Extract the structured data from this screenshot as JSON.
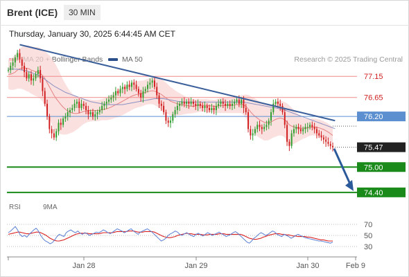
{
  "header": {
    "title": "Brent (ICE)",
    "timeframe": "30 MIN"
  },
  "datetime": "Thursday, January 30, 2025 6:44:45 AM CET",
  "legend": {
    "ma20_label": "MA 20 + Bollinger Bands",
    "ma50_label": "MA 50",
    "credit": "Research © 2025 Trading Central"
  },
  "rsi_legend": {
    "rsi_label": "RSI",
    "ma9_label": "9MA"
  },
  "colors": {
    "bull": "#2f9e2f",
    "bear": "#d11f1f",
    "band": "#f9d6d6",
    "ma20": "#e58080",
    "ma50": "#8b91c2",
    "trendline": "#3a5f9a",
    "level_red": "#f08a8a",
    "level_blue": "#5b8fd0",
    "level_green": "#1a8a1a",
    "arrow": "#2b5a9a",
    "rsi": "#5b7fd4",
    "rsi_ma": "#d92020"
  },
  "chart_data": {
    "type": "candlestick",
    "x_tick_labels": [
      "Jan 28",
      "Jan 29",
      "Jan 30",
      "Feb 9"
    ],
    "ylim": [
      74.2,
      77.4
    ],
    "levels": [
      {
        "value": 77.15,
        "label": "77.15",
        "style": "resistance"
      },
      {
        "value": 76.65,
        "label": "76.65",
        "style": "resistance"
      },
      {
        "value": 76.2,
        "label": "76.20",
        "style": "pivot"
      },
      {
        "value": 75.47,
        "label": "75.47",
        "style": "last"
      },
      {
        "value": 75.0,
        "label": "75.00",
        "style": "support"
      },
      {
        "value": 74.4,
        "label": "74.40",
        "style": "support"
      }
    ],
    "close": [
      77.3,
      77.4,
      77.48,
      77.6,
      77.7,
      77.55,
      77.4,
      77.25,
      77.1,
      77.2,
      77.05,
      77.1,
      77.2,
      77.3,
      77.1,
      76.8,
      76.5,
      76.2,
      75.9,
      75.8,
      75.7,
      75.85,
      76.05,
      76.0,
      76.15,
      76.2,
      76.3,
      76.35,
      76.4,
      76.5,
      76.55,
      76.4,
      76.5,
      76.45,
      76.35,
      76.25,
      76.3,
      76.2,
      76.25,
      76.3,
      76.35,
      76.45,
      76.5,
      76.55,
      76.6,
      76.65,
      76.7,
      76.8,
      76.75,
      76.85,
      76.9,
      76.85,
      76.95,
      76.9,
      77.0,
      76.95,
      76.85,
      76.75,
      76.65,
      76.8,
      76.85,
      76.95,
      77.0,
      77.05,
      76.9,
      76.7,
      76.5,
      76.45,
      76.3,
      76.1,
      76.05,
      76.1,
      76.25,
      76.35,
      76.45,
      76.5,
      76.55,
      76.5,
      76.55,
      76.5,
      76.55,
      76.5,
      76.45,
      76.5,
      76.45,
      76.4,
      76.45,
      76.4,
      76.35,
      76.4,
      76.35,
      76.45,
      76.5,
      76.55,
      76.5,
      76.45,
      76.5,
      76.45,
      76.5,
      76.55,
      76.6,
      76.5,
      76.6,
      76.4,
      76.3,
      75.9,
      75.75,
      75.8,
      75.9,
      76.0,
      75.95,
      75.9,
      75.95,
      76.0,
      76.1,
      76.3,
      76.5,
      76.55,
      76.5,
      76.45,
      76.3,
      76.0,
      75.6,
      75.5,
      75.8,
      75.9,
      75.95,
      75.9,
      75.85,
      75.9,
      75.95,
      75.95,
      76.0,
      75.95,
      75.9,
      75.8,
      75.75,
      75.7,
      75.65,
      75.6,
      75.55,
      75.5,
      75.47
    ],
    "ma20": [
      77.2,
      77.2,
      77.22,
      77.25,
      77.3,
      77.33,
      77.35,
      77.35,
      77.34,
      77.33,
      77.3,
      77.28,
      77.26,
      77.25,
      77.22,
      77.17,
      77.1,
      77.0,
      76.9,
      76.8,
      76.7,
      76.62,
      76.55,
      76.48,
      76.42,
      76.37,
      76.33,
      76.3,
      76.28,
      76.27,
      76.27,
      76.28,
      76.3,
      76.32,
      76.33,
      76.34,
      76.34,
      76.34,
      76.34,
      76.34,
      76.35,
      76.36,
      76.37,
      76.38,
      76.4,
      76.42,
      76.45,
      76.48,
      76.5,
      76.53,
      76.56,
      76.59,
      76.62,
      76.65,
      76.68,
      76.7,
      76.72,
      76.73,
      76.74,
      76.75,
      76.77,
      76.79,
      76.8,
      76.81,
      76.8,
      76.78,
      76.75,
      76.72,
      76.68,
      76.64,
      76.6,
      76.56,
      76.54,
      76.52,
      76.5,
      76.49,
      76.48,
      76.47,
      76.46,
      76.45,
      76.44,
      76.44,
      76.45,
      76.46,
      76.46,
      76.46,
      76.46,
      76.46,
      76.45,
      76.45,
      76.44,
      76.44,
      76.45,
      76.46,
      76.46,
      76.46,
      76.46,
      76.46,
      76.46,
      76.47,
      76.48,
      76.48,
      76.49,
      76.47,
      76.44,
      76.38,
      76.31,
      76.25,
      76.2,
      76.16,
      76.12,
      76.09,
      76.06,
      76.05,
      76.05,
      76.07,
      76.1,
      76.13,
      76.15,
      76.16,
      76.15,
      76.12,
      76.07,
      76.0,
      75.97,
      75.95,
      75.94,
      75.93,
      75.92,
      75.92,
      75.92,
      75.93,
      75.94,
      75.95,
      75.95,
      75.94,
      75.93,
      75.91,
      75.89,
      75.86,
      75.83,
      75.79,
      75.75
    ],
    "bb_width": [
      0.35,
      0.37,
      0.39,
      0.41,
      0.44,
      0.47,
      0.5,
      0.52,
      0.54,
      0.55,
      0.56,
      0.57,
      0.58,
      0.59,
      0.6,
      0.62,
      0.65,
      0.7,
      0.75,
      0.78,
      0.8,
      0.78,
      0.75,
      0.7,
      0.65,
      0.6,
      0.55,
      0.5,
      0.46,
      0.42,
      0.38,
      0.35,
      0.32,
      0.3,
      0.28,
      0.27,
      0.26,
      0.25,
      0.25,
      0.25,
      0.25,
      0.25,
      0.26,
      0.27,
      0.28,
      0.29,
      0.3,
      0.31,
      0.32,
      0.32,
      0.33,
      0.33,
      0.33,
      0.33,
      0.33,
      0.32,
      0.32,
      0.31,
      0.31,
      0.3,
      0.3,
      0.3,
      0.31,
      0.32,
      0.33,
      0.34,
      0.35,
      0.36,
      0.36,
      0.36,
      0.35,
      0.34,
      0.32,
      0.3,
      0.28,
      0.26,
      0.24,
      0.22,
      0.2,
      0.18,
      0.17,
      0.16,
      0.16,
      0.16,
      0.15,
      0.15,
      0.15,
      0.15,
      0.15,
      0.15,
      0.15,
      0.16,
      0.17,
      0.18,
      0.18,
      0.18,
      0.18,
      0.18,
      0.18,
      0.19,
      0.2,
      0.2,
      0.21,
      0.24,
      0.28,
      0.33,
      0.37,
      0.4,
      0.42,
      0.43,
      0.43,
      0.43,
      0.43,
      0.42,
      0.41,
      0.4,
      0.4,
      0.41,
      0.41,
      0.41,
      0.41,
      0.42,
      0.44,
      0.46,
      0.44,
      0.4,
      0.36,
      0.32,
      0.28,
      0.25,
      0.23,
      0.21,
      0.2,
      0.2,
      0.2,
      0.2,
      0.2,
      0.2,
      0.2,
      0.2,
      0.2,
      0.2,
      0.2
    ],
    "ma50": [
      77.32,
      77.32,
      77.32,
      77.32,
      77.32,
      77.31,
      77.3,
      77.29,
      77.28,
      77.26,
      77.24,
      77.22,
      77.2,
      77.18,
      77.15,
      77.12,
      77.08,
      77.04,
      77.0,
      76.96,
      76.92,
      76.89,
      76.86,
      76.83,
      76.8,
      76.77,
      76.75,
      76.73,
      76.71,
      76.69,
      76.67,
      76.65,
      76.63,
      76.61,
      76.59,
      76.57,
      76.55,
      76.54,
      76.53,
      76.52,
      76.51,
      76.5,
      76.49,
      76.48,
      76.48,
      76.48,
      76.48,
      76.48,
      76.48,
      76.48,
      76.48,
      76.49,
      76.5,
      76.51,
      76.52,
      76.53,
      76.54,
      76.55,
      76.56,
      76.57,
      76.58,
      76.59,
      76.6,
      76.61,
      76.62,
      76.62,
      76.62,
      76.62,
      76.62,
      76.61,
      76.6,
      76.59,
      76.58,
      76.57,
      76.56,
      76.55,
      76.55,
      76.54,
      76.54,
      76.54,
      76.54,
      76.54,
      76.54,
      76.54,
      76.54,
      76.54,
      76.54,
      76.54,
      76.54,
      76.54,
      76.54,
      76.54,
      76.54,
      76.54,
      76.54,
      76.54,
      76.54,
      76.54,
      76.54,
      76.54,
      76.54,
      76.54,
      76.54,
      76.54,
      76.53,
      76.52,
      76.51,
      76.5,
      76.49,
      76.48,
      76.47,
      76.46,
      76.45,
      76.44,
      76.43,
      76.42,
      76.41,
      76.4,
      76.39,
      76.38,
      76.37,
      76.35,
      76.33,
      76.31,
      76.29,
      76.27,
      76.25,
      76.23,
      76.21,
      76.19,
      76.17,
      76.15,
      76.13,
      76.11,
      76.09,
      76.07,
      76.05,
      76.03,
      76.01,
      75.99,
      75.97,
      75.95,
      75.93,
      75.91
    ],
    "trendline": {
      "start": [
        5,
        77.9
      ],
      "end": [
        143,
        76.1
      ]
    },
    "rsi": {
      "ylim": [
        20,
        80
      ],
      "ticks": [
        70,
        50,
        30
      ],
      "values": [
        55,
        58,
        62,
        66,
        60,
        52,
        48,
        50,
        47,
        52,
        56,
        60,
        63,
        58,
        50,
        44,
        40,
        38,
        35,
        37,
        42,
        48,
        52,
        50,
        48,
        55,
        58,
        60,
        57,
        55,
        58,
        54,
        52,
        55,
        53,
        50,
        52,
        54,
        56,
        55,
        57,
        60,
        58,
        55,
        53,
        56,
        59,
        62,
        60,
        58,
        55,
        57,
        60,
        62,
        58,
        55,
        52,
        56,
        58,
        60,
        62,
        59,
        56,
        52,
        48,
        44,
        40,
        42,
        45,
        50,
        53,
        55,
        58,
        56,
        52,
        50,
        53,
        55,
        52,
        50,
        48,
        52,
        54,
        51,
        49,
        52,
        55,
        53,
        50,
        52,
        54,
        56,
        53,
        51,
        48,
        50,
        52,
        55,
        57,
        54,
        50,
        46,
        42,
        38,
        36,
        40,
        45,
        48,
        52,
        55,
        53,
        50,
        52,
        55,
        58,
        56,
        52,
        50,
        48,
        52,
        50,
        48,
        45,
        47,
        50,
        52,
        50,
        48,
        46,
        45,
        44,
        43,
        42,
        41,
        40,
        40,
        39,
        38,
        37,
        36,
        38
      ],
      "ma9": [
        52,
        53,
        54,
        55,
        56,
        56,
        55,
        54,
        53,
        53,
        54,
        55,
        56,
        56,
        55,
        53,
        51,
        48,
        45,
        43,
        41,
        40,
        40,
        41,
        42,
        44,
        46,
        48,
        50,
        52,
        53,
        54,
        54,
        54,
        54,
        53,
        53,
        53,
        53,
        53,
        54,
        55,
        55,
        55,
        55,
        55,
        56,
        57,
        57,
        57,
        57,
        57,
        58,
        58,
        58,
        57,
        56,
        56,
        56,
        57,
        57,
        57,
        57,
        56,
        54,
        52,
        50,
        48,
        47,
        46,
        46,
        47,
        48,
        50,
        51,
        52,
        53,
        54,
        53,
        53,
        52,
        52,
        52,
        52,
        51,
        51,
        51,
        52,
        52,
        52,
        52,
        53,
        53,
        53,
        52,
        52,
        52,
        52,
        52,
        52,
        52,
        51,
        49,
        47,
        45,
        44,
        43,
        43,
        44,
        45,
        47,
        48,
        50,
        51,
        52,
        53,
        53,
        53,
        52,
        52,
        51,
        51,
        50,
        49,
        49,
        48,
        48,
        48,
        48,
        47,
        47,
        46,
        45,
        44,
        43,
        42,
        42,
        41,
        40,
        40,
        40
      ]
    }
  }
}
